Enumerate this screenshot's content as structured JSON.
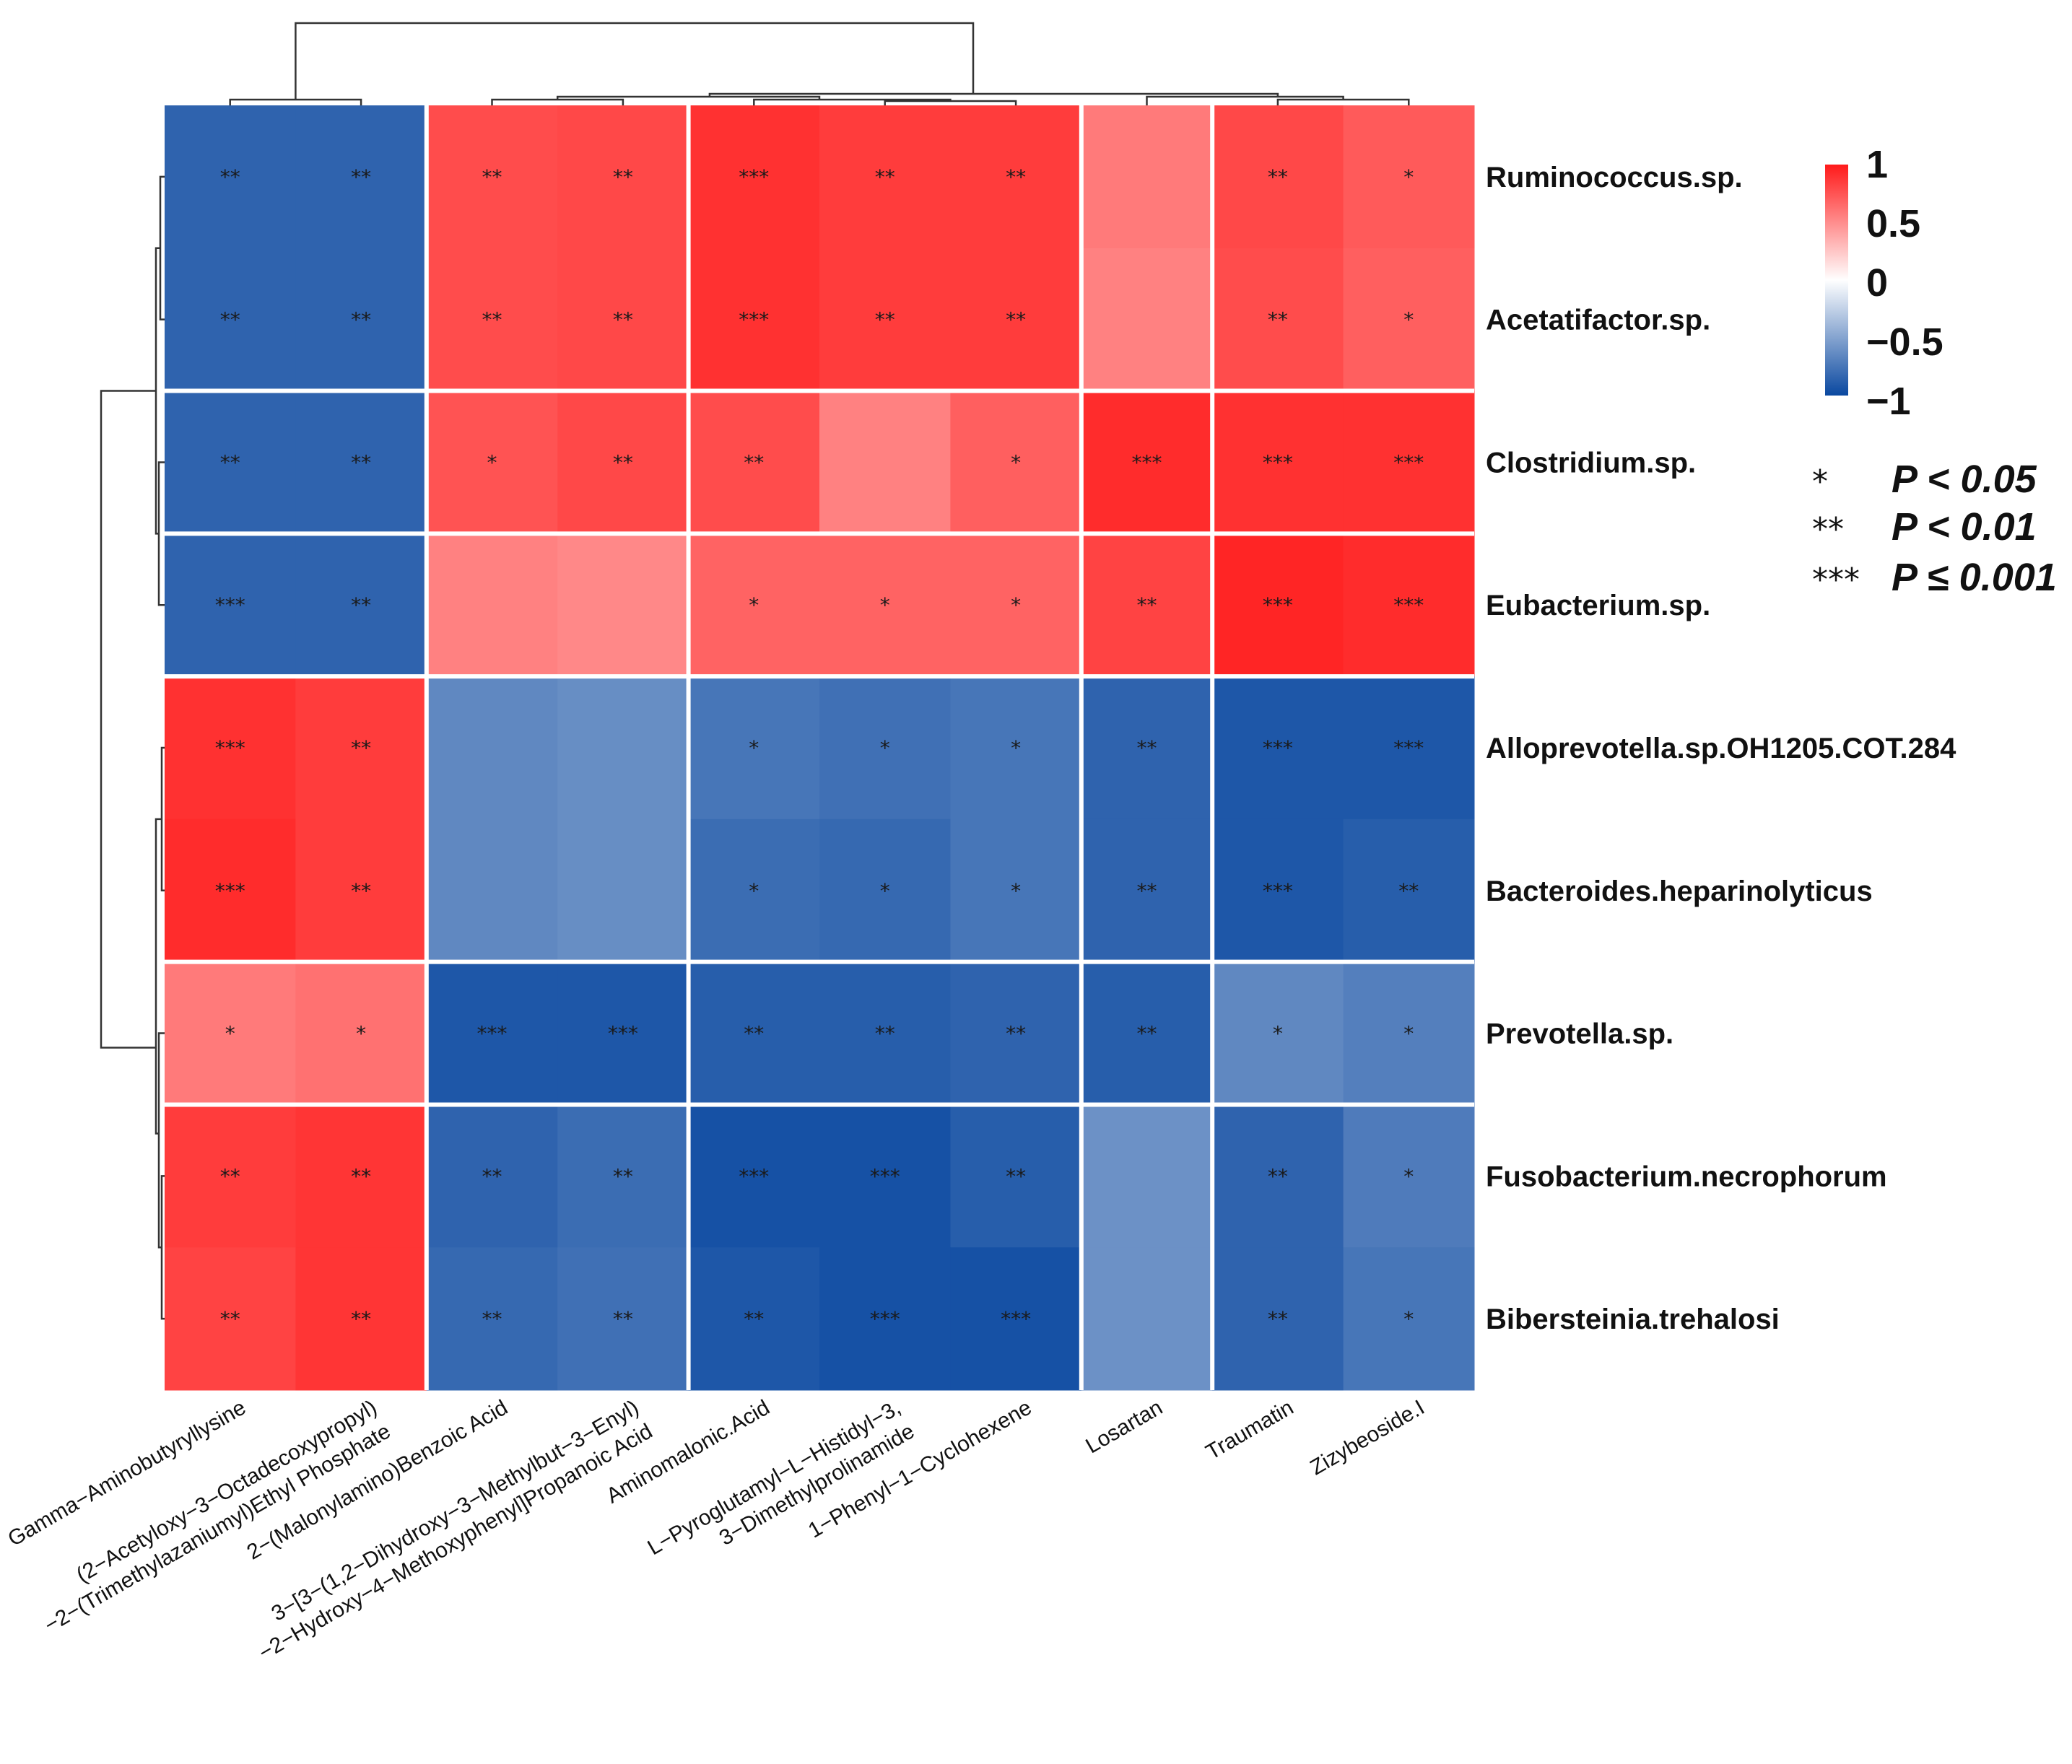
{
  "chart_data": {
    "type": "heatmap",
    "title": "",
    "rows": [
      "Ruminococcus.sp.",
      "Acetatifactor.sp.",
      "Clostridium.sp.",
      "Eubacterium.sp.",
      "Alloprevotella.sp.OH1205.COT.284",
      "Bacteroides.heparinolyticus",
      "Prevotella.sp.",
      "Fusobacterium.necrophorum",
      "Bibersteinia.trehalosi"
    ],
    "columns": [
      [
        "Gamma−Aminobutyryllysine"
      ],
      [
        "(2−Acetyloxy−3−Octadecoxypropyl)",
        "−2−(Trimethylazaniumyl)Ethyl Phosphate"
      ],
      [
        "2−(Malonylamino)Benzoic Acid"
      ],
      [
        "3−[3−(1,2−Dihydroxy−3−Methylbut−3−Enyl)",
        "−2−Hydroxy−4−Methoxyphenyl]Propanoic Acid"
      ],
      [
        "Aminomalonic.Acid"
      ],
      [
        "L−Pyroglutamyl−L−Histidyl−3,",
        "3−Dimethylprolinamide"
      ],
      [
        "1−Phenyl−1−Cyclohexene"
      ],
      [
        "Losartan"
      ],
      [
        "Traumatin"
      ],
      [
        "Zizybeoside.I"
      ]
    ],
    "values": [
      [
        -0.85,
        -0.85,
        0.78,
        0.8,
        0.9,
        0.85,
        0.85,
        0.58,
        0.8,
        0.72
      ],
      [
        -0.85,
        -0.85,
        0.78,
        0.8,
        0.9,
        0.85,
        0.85,
        0.55,
        0.78,
        0.7
      ],
      [
        -0.85,
        -0.85,
        0.75,
        0.8,
        0.78,
        0.55,
        0.7,
        0.92,
        0.9,
        0.9
      ],
      [
        -0.85,
        -0.85,
        0.55,
        0.52,
        0.68,
        0.68,
        0.68,
        0.82,
        0.95,
        0.92
      ],
      [
        0.9,
        0.85,
        -0.65,
        -0.62,
        -0.75,
        -0.78,
        -0.75,
        -0.85,
        -0.92,
        -0.92
      ],
      [
        0.92,
        0.85,
        -0.65,
        -0.62,
        -0.8,
        -0.82,
        -0.75,
        -0.85,
        -0.92,
        -0.88
      ],
      [
        0.58,
        0.62,
        -0.92,
        -0.92,
        -0.88,
        -0.88,
        -0.85,
        -0.88,
        -0.65,
        -0.7
      ],
      [
        0.85,
        0.88,
        -0.85,
        -0.8,
        -0.95,
        -0.95,
        -0.88,
        -0.6,
        -0.85,
        -0.72
      ],
      [
        0.82,
        0.88,
        -0.82,
        -0.78,
        -0.92,
        -0.95,
        -0.95,
        -0.6,
        -0.85,
        -0.75
      ]
    ],
    "significance": [
      [
        "**",
        "**",
        "**",
        "**",
        "***",
        "**",
        "**",
        "",
        "**",
        "*"
      ],
      [
        "**",
        "**",
        "**",
        "**",
        "***",
        "**",
        "**",
        "",
        "**",
        "*"
      ],
      [
        "**",
        "**",
        "*",
        "**",
        "**",
        "",
        "*",
        "***",
        "***",
        "***"
      ],
      [
        "***",
        "**",
        "",
        "",
        "*",
        "*",
        "*",
        "**",
        "***",
        "***"
      ],
      [
        "***",
        "**",
        "",
        "",
        "*",
        "*",
        "*",
        "**",
        "***",
        "***"
      ],
      [
        "***",
        "**",
        "",
        "",
        "*",
        "*",
        "*",
        "**",
        "***",
        "**"
      ],
      [
        "*",
        "*",
        "***",
        "***",
        "**",
        "**",
        "**",
        "**",
        "*",
        "*"
      ],
      [
        "**",
        "**",
        "**",
        "**",
        "***",
        "***",
        "**",
        "",
        "**",
        "*"
      ],
      [
        "**",
        "**",
        "**",
        "**",
        "**",
        "***",
        "***",
        "",
        "**",
        "*"
      ]
    ],
    "row_groups": [
      [
        0,
        1
      ],
      [
        2
      ],
      [
        3
      ],
      [
        4,
        5
      ],
      [
        6
      ],
      [
        7,
        8
      ]
    ],
    "column_groups": [
      [
        0,
        1
      ],
      [
        2,
        3
      ],
      [
        4,
        5,
        6
      ],
      [
        7
      ],
      [
        8,
        9
      ]
    ],
    "colorbar": {
      "range": [
        -1,
        1
      ],
      "ticks": [
        1,
        0.5,
        0,
        -0.5,
        -1
      ],
      "tick_labels": [
        "1",
        "0.5",
        "0",
        "−0.5",
        "−1"
      ],
      "colors": {
        "low": "#0a48a0",
        "mid": "#ffffff",
        "high": "#ff1a1a"
      }
    },
    "significance_legend": [
      {
        "symbol": "*",
        "label": "P < 0.05"
      },
      {
        "symbol": "**",
        "label": "P < 0.01"
      },
      {
        "symbol": "***",
        "label": "P ≤ 0.001"
      }
    ]
  }
}
